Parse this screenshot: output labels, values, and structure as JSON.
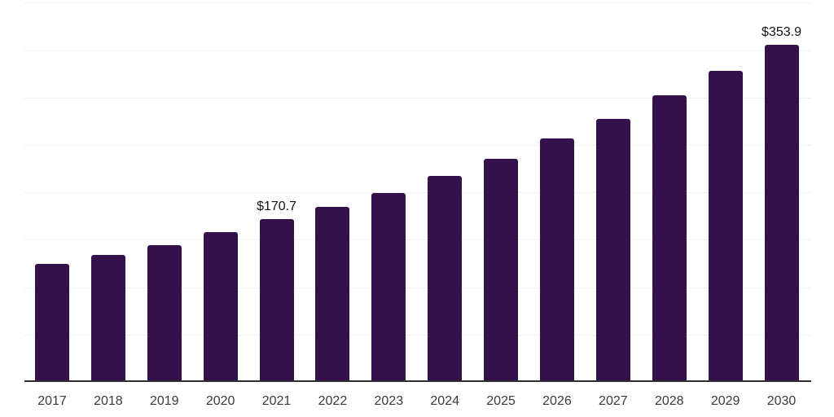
{
  "chart_data": {
    "type": "bar",
    "title": "",
    "xlabel": "",
    "ylabel": "",
    "categories": [
      "2017",
      "2018",
      "2019",
      "2020",
      "2021",
      "2022",
      "2023",
      "2024",
      "2025",
      "2026",
      "2027",
      "2028",
      "2029",
      "2030"
    ],
    "values": [
      124.2,
      133.6,
      143.9,
      157.6,
      170.7,
      184.1,
      198.7,
      216.6,
      233.8,
      255.2,
      275.7,
      300.6,
      326.2,
      353.9
    ],
    "labels": [
      null,
      null,
      null,
      null,
      "$170.7",
      null,
      null,
      null,
      null,
      null,
      null,
      null,
      null,
      "$353.9"
    ],
    "unit_prefix": "$",
    "ylim": [
      0,
      400
    ],
    "grid": "horizontal",
    "legend": "none"
  },
  "colors": {
    "bar": "#35114c",
    "axis": "#2e2e2e",
    "grid": "#f0f0f1",
    "tick_text": "#3a3a3a",
    "label_text": "#111111",
    "background": "#ffffff"
  }
}
